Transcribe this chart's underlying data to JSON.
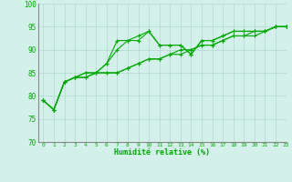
{
  "xlabel": "Humidité relative (%)",
  "xlim": [
    -0.5,
    23
  ],
  "ylim": [
    70,
    100
  ],
  "yticks": [
    70,
    75,
    80,
    85,
    90,
    95,
    100
  ],
  "xticks": [
    0,
    1,
    2,
    3,
    4,
    5,
    6,
    7,
    8,
    9,
    10,
    11,
    12,
    13,
    14,
    15,
    16,
    17,
    18,
    19,
    20,
    21,
    22,
    23
  ],
  "bg_color": "#d4f0eb",
  "grid_color": "#b0d8cc",
  "line_color": "#00aa00",
  "axis_color": "#888888",
  "series": [
    [
      79,
      77,
      83,
      84,
      85,
      85,
      87,
      92,
      92,
      93,
      94,
      91,
      91,
      91,
      89,
      92,
      92,
      93,
      94,
      94,
      94,
      94,
      95,
      95
    ],
    [
      79,
      77,
      83,
      84,
      85,
      85,
      87,
      90,
      92,
      92,
      94,
      91,
      91,
      91,
      89,
      92,
      92,
      93,
      94,
      94,
      94,
      94,
      95,
      95
    ],
    [
      79,
      77,
      83,
      84,
      84,
      85,
      85,
      85,
      86,
      87,
      88,
      88,
      89,
      90,
      90,
      91,
      91,
      92,
      93,
      93,
      94,
      94,
      95,
      95
    ],
    [
      79,
      77,
      83,
      84,
      84,
      85,
      85,
      85,
      86,
      87,
      88,
      88,
      89,
      89,
      90,
      91,
      91,
      92,
      93,
      93,
      93,
      94,
      95,
      95
    ]
  ]
}
